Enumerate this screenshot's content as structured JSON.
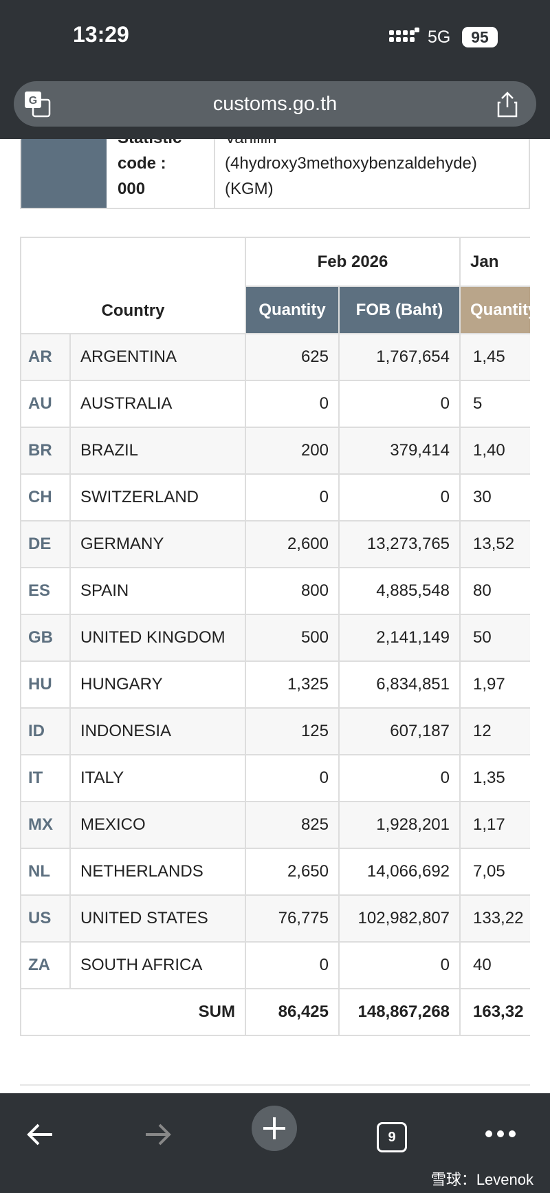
{
  "status_bar": {
    "time": "13:29",
    "network": "5G",
    "battery": "95"
  },
  "browser": {
    "url": "customs.go.th",
    "tab_count": "9"
  },
  "info": {
    "label": [
      "Statistic",
      "code :",
      "000"
    ],
    "description": [
      "Vanillin",
      "(4hydroxy3methoxybenzaldehyde)",
      "(KGM)"
    ]
  },
  "table": {
    "country_header": "Country",
    "periods": [
      "Feb 2026",
      "Jan"
    ],
    "subheaders": [
      "Quantity",
      "FOB (Baht)",
      "Quantity"
    ],
    "rows": [
      {
        "code": "AR",
        "country": "ARGENTINA",
        "qty": "625",
        "fob": "1,767,654",
        "prev_qty": "1,45"
      },
      {
        "code": "AU",
        "country": "AUSTRALIA",
        "qty": "0",
        "fob": "0",
        "prev_qty": "5"
      },
      {
        "code": "BR",
        "country": "BRAZIL",
        "qty": "200",
        "fob": "379,414",
        "prev_qty": "1,40"
      },
      {
        "code": "CH",
        "country": "SWITZERLAND",
        "qty": "0",
        "fob": "0",
        "prev_qty": "30"
      },
      {
        "code": "DE",
        "country": "GERMANY",
        "qty": "2,600",
        "fob": "13,273,765",
        "prev_qty": "13,52"
      },
      {
        "code": "ES",
        "country": "SPAIN",
        "qty": "800",
        "fob": "4,885,548",
        "prev_qty": "80"
      },
      {
        "code": "GB",
        "country": "UNITED KINGDOM",
        "qty": "500",
        "fob": "2,141,149",
        "prev_qty": "50"
      },
      {
        "code": "HU",
        "country": "HUNGARY",
        "qty": "1,325",
        "fob": "6,834,851",
        "prev_qty": "1,97"
      },
      {
        "code": "ID",
        "country": "INDONESIA",
        "qty": "125",
        "fob": "607,187",
        "prev_qty": "12"
      },
      {
        "code": "IT",
        "country": "ITALY",
        "qty": "0",
        "fob": "0",
        "prev_qty": "1,35"
      },
      {
        "code": "MX",
        "country": "MEXICO",
        "qty": "825",
        "fob": "1,928,201",
        "prev_qty": "1,17"
      },
      {
        "code": "NL",
        "country": "NETHERLANDS",
        "qty": "2,650",
        "fob": "14,066,692",
        "prev_qty": "7,05"
      },
      {
        "code": "US",
        "country": "UNITED STATES",
        "qty": "76,775",
        "fob": "102,982,807",
        "prev_qty": "133,22"
      },
      {
        "code": "ZA",
        "country": "SOUTH AFRICA",
        "qty": "0",
        "fob": "0",
        "prev_qty": "40"
      }
    ],
    "sum": {
      "label": "SUM",
      "qty": "86,425",
      "fob": "148,867,268",
      "prev_qty": "163,32"
    }
  },
  "watermark": "雪球：Levenok"
}
